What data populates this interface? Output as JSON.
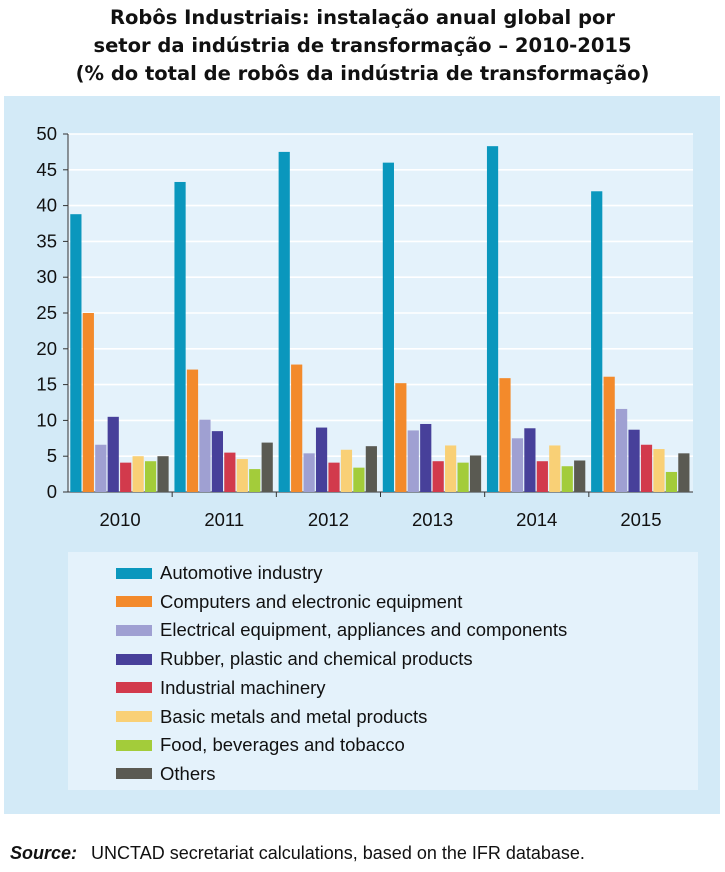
{
  "title": {
    "line1": "Robôs Industriais: instalação anual global por",
    "line2": "setor da indústria de transformação – 2010-2015",
    "line3": "(% do total de robôs da indústria de transformação)"
  },
  "source": {
    "label": "Source:",
    "text": "UNCTAD secretariat calculations, based on the IFR database."
  },
  "chart_data": {
    "type": "bar",
    "title": "Robôs Industriais: instalação anual global por setor da indústria de transformação – 2010-2015 (% do total de robôs da indústria de transformação)",
    "xlabel": "",
    "ylabel": "",
    "ylim": [
      0,
      50
    ],
    "yticks": [
      0,
      5,
      10,
      15,
      20,
      25,
      30,
      35,
      40,
      45,
      50
    ],
    "grid": true,
    "legend_position": "bottom",
    "categories": [
      "2010",
      "2011",
      "2012",
      "2013",
      "2014",
      "2015"
    ],
    "series": [
      {
        "name": "Automotive industry",
        "color": "#0a97bd",
        "values": [
          38.8,
          43.3,
          47.5,
          46.0,
          48.3,
          42.0
        ]
      },
      {
        "name": "Computers and electronic equipment",
        "color": "#f38a2b",
        "values": [
          25.0,
          17.1,
          17.8,
          15.2,
          15.9,
          16.1
        ]
      },
      {
        "name": "Electrical equipment, appliances and components",
        "color": "#9fa0d2",
        "values": [
          6.6,
          10.1,
          5.4,
          8.6,
          7.5,
          11.6
        ]
      },
      {
        "name": "Rubber, plastic and chemical products",
        "color": "#47409a",
        "values": [
          10.5,
          8.5,
          9.0,
          9.5,
          8.9,
          8.7
        ]
      },
      {
        "name": "Industrial machinery",
        "color": "#d23a4c",
        "values": [
          4.1,
          5.5,
          4.1,
          4.3,
          4.3,
          6.6
        ]
      },
      {
        "name": "Basic metals and metal products",
        "color": "#f9d076",
        "values": [
          5.0,
          4.6,
          5.9,
          6.5,
          6.5,
          6.0
        ]
      },
      {
        "name": "Food, beverages and tobacco",
        "color": "#a3cc3a",
        "values": [
          4.3,
          3.2,
          3.4,
          4.1,
          3.6,
          2.8
        ]
      },
      {
        "name": "Others",
        "color": "#5a5a52",
        "values": [
          5.0,
          6.9,
          6.4,
          5.1,
          4.4,
          5.4
        ]
      }
    ]
  }
}
